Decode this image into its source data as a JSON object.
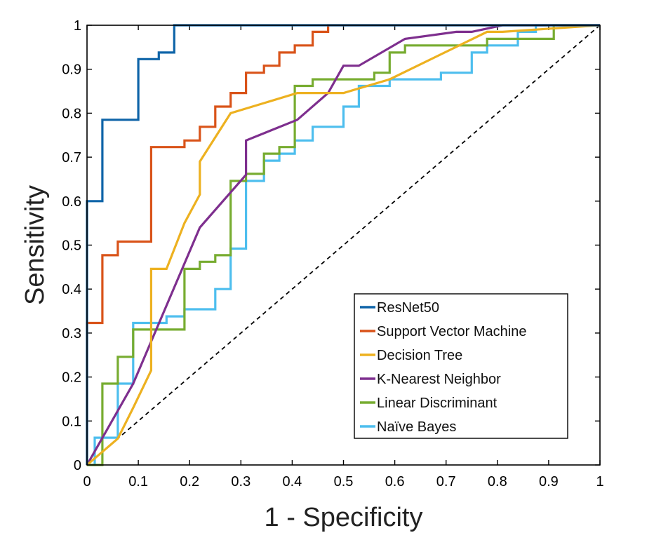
{
  "chart_data": {
    "type": "line",
    "title": "",
    "xlabel": "1 - Specificity",
    "ylabel": "Sensitivity",
    "xlim": [
      0,
      1
    ],
    "ylim": [
      0,
      1
    ],
    "xticks": [
      "0",
      "0.1",
      "0.2",
      "0.3",
      "0.4",
      "0.5",
      "0.6",
      "0.7",
      "0.8",
      "0.9",
      "1"
    ],
    "yticks": [
      "0",
      "0.1",
      "0.2",
      "0.3",
      "0.4",
      "0.5",
      "0.6",
      "0.7",
      "0.8",
      "0.9",
      "1"
    ],
    "grid": false,
    "legend_position": "bottom-right",
    "reference_line": {
      "name": "chance",
      "style": "dashed",
      "color": "#000000",
      "x": [
        0,
        1
      ],
      "y": [
        0,
        1
      ]
    },
    "series": [
      {
        "name": "ResNet50",
        "color": "#0E64A8",
        "x": [
          0,
          0,
          0.03,
          0.03,
          0.1,
          0.1,
          0.14,
          0.14,
          0.17,
          0.17,
          0.47,
          1
        ],
        "y": [
          0,
          0.6,
          0.6,
          0.785,
          0.785,
          0.923,
          0.923,
          0.938,
          0.938,
          1,
          1,
          1
        ]
      },
      {
        "name": "Support Vector Machine",
        "color": "#D95319",
        "x": [
          0,
          0,
          0.03,
          0.03,
          0.06,
          0.06,
          0.125,
          0.125,
          0.19,
          0.19,
          0.22,
          0.22,
          0.25,
          0.25,
          0.28,
          0.28,
          0.31,
          0.31,
          0.345,
          0.345,
          0.375,
          0.375,
          0.405,
          0.405,
          0.44,
          0.44,
          0.47,
          0.47,
          1
        ],
        "y": [
          0,
          0.323,
          0.323,
          0.477,
          0.477,
          0.508,
          0.508,
          0.723,
          0.723,
          0.738,
          0.738,
          0.769,
          0.769,
          0.815,
          0.815,
          0.846,
          0.846,
          0.892,
          0.892,
          0.908,
          0.908,
          0.938,
          0.938,
          0.954,
          0.954,
          0.985,
          0.985,
          1,
          1
        ]
      },
      {
        "name": "Decision Tree",
        "color": "#EDB120",
        "x": [
          0,
          0.06,
          0.09,
          0.125,
          0.125,
          0.155,
          0.19,
          0.22,
          0.22,
          0.28,
          0.41,
          0.5,
          0.59,
          0.78,
          0.81,
          1
        ],
        "y": [
          0,
          0.06,
          0.13,
          0.215,
          0.446,
          0.446,
          0.55,
          0.615,
          0.69,
          0.8,
          0.846,
          0.846,
          0.877,
          0.985,
          0.985,
          1
        ]
      },
      {
        "name": "K-Nearest Neighbor",
        "color": "#7E2F8E",
        "x": [
          0,
          0.09,
          0.22,
          0.31,
          0.31,
          0.41,
          0.47,
          0.5,
          0.53,
          0.62,
          0.72,
          0.75,
          0.81,
          1
        ],
        "y": [
          0,
          0.185,
          0.54,
          0.66,
          0.738,
          0.785,
          0.846,
          0.908,
          0.908,
          0.969,
          0.985,
          0.985,
          1,
          1
        ]
      },
      {
        "name": "Linear Discriminant",
        "color": "#77AC30",
        "x": [
          0,
          0.03,
          0.03,
          0.06,
          0.06,
          0.09,
          0.09,
          0.19,
          0.19,
          0.22,
          0.22,
          0.25,
          0.25,
          0.28,
          0.28,
          0.31,
          0.31,
          0.345,
          0.345,
          0.375,
          0.375,
          0.405,
          0.405,
          0.44,
          0.44,
          0.56,
          0.56,
          0.59,
          0.59,
          0.62,
          0.62,
          0.78,
          0.78,
          0.91,
          0.91,
          1
        ],
        "y": [
          0,
          0,
          0.185,
          0.185,
          0.246,
          0.246,
          0.308,
          0.308,
          0.446,
          0.446,
          0.462,
          0.462,
          0.477,
          0.477,
          0.646,
          0.646,
          0.662,
          0.662,
          0.708,
          0.708,
          0.723,
          0.723,
          0.862,
          0.862,
          0.877,
          0.877,
          0.892,
          0.892,
          0.938,
          0.938,
          0.954,
          0.954,
          0.969,
          0.969,
          1,
          1
        ]
      },
      {
        "name": "Naïve Bayes",
        "color": "#4DBEEE",
        "x": [
          0,
          0.015,
          0.015,
          0.06,
          0.06,
          0.09,
          0.09,
          0.155,
          0.155,
          0.19,
          0.19,
          0.25,
          0.25,
          0.28,
          0.28,
          0.31,
          0.31,
          0.345,
          0.345,
          0.375,
          0.375,
          0.405,
          0.405,
          0.44,
          0.44,
          0.5,
          0.5,
          0.53,
          0.53,
          0.59,
          0.59,
          0.69,
          0.69,
          0.75,
          0.75,
          0.78,
          0.78,
          0.84,
          0.84,
          0.875,
          0.875,
          1
        ],
        "y": [
          0,
          0,
          0.062,
          0.062,
          0.185,
          0.185,
          0.323,
          0.323,
          0.338,
          0.338,
          0.354,
          0.354,
          0.4,
          0.4,
          0.492,
          0.492,
          0.646,
          0.646,
          0.692,
          0.692,
          0.708,
          0.708,
          0.738,
          0.738,
          0.769,
          0.769,
          0.815,
          0.815,
          0.862,
          0.862,
          0.877,
          0.877,
          0.892,
          0.892,
          0.938,
          0.938,
          0.954,
          0.954,
          0.985,
          0.985,
          1,
          1
        ]
      }
    ]
  }
}
